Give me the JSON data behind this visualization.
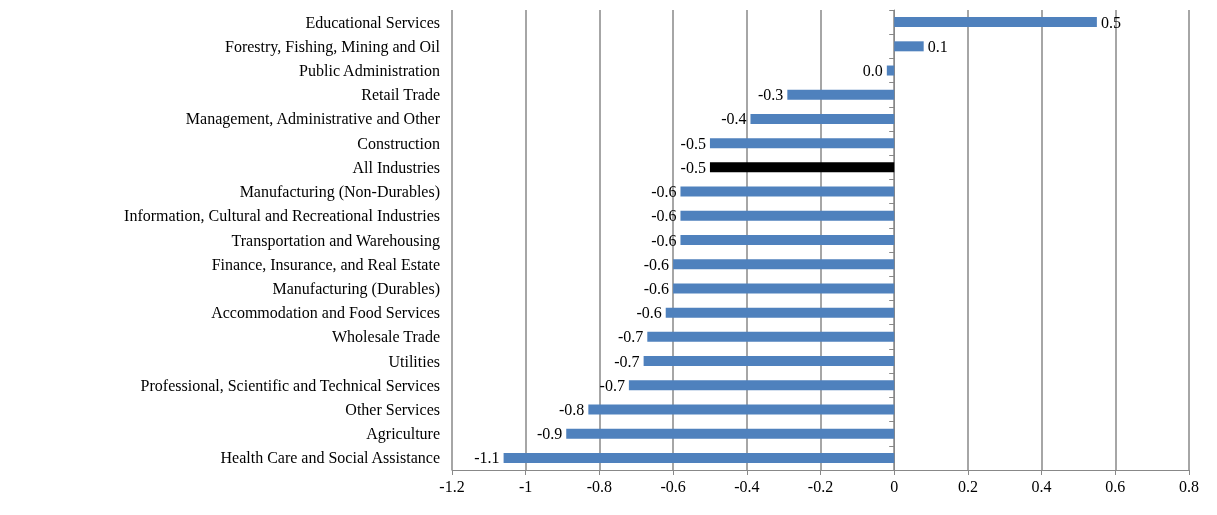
{
  "chart_data": {
    "type": "bar",
    "orientation": "horizontal",
    "categories": [
      "Educational Services",
      "Forestry, Fishing, Mining and Oil",
      "Public Administration",
      "Retail Trade",
      "Management, Administrative and Other",
      "Construction",
      "All Industries",
      "Manufacturing (Non-Durables)",
      "Information, Cultural and Recreational Industries",
      "Transportation and Warehousing",
      "Finance, Insurance, and Real Estate",
      "Manufacturing (Durables)",
      "Accommodation and Food Services",
      "Wholesale Trade",
      "Utilities",
      "Professional, Scientific and Technical Services",
      "Other Services",
      "Agriculture",
      "Health Care and Social Assistance"
    ],
    "values": [
      0.55,
      0.08,
      -0.02,
      -0.29,
      -0.39,
      -0.5,
      -0.5,
      -0.58,
      -0.58,
      -0.58,
      -0.6,
      -0.6,
      -0.62,
      -0.67,
      -0.68,
      -0.72,
      -0.83,
      -0.89,
      -1.06
    ],
    "value_labels": [
      "0.5",
      "0.1",
      "0.0",
      "-0.3",
      "-0.4",
      "-0.5",
      "-0.5",
      "-0.6",
      "-0.6",
      "-0.6",
      "-0.6",
      "-0.6",
      "-0.6",
      "-0.7",
      "-0.7",
      "-0.7",
      "-0.8",
      "-0.9",
      "-1.1"
    ],
    "colors": [
      "#4f81bd",
      "#4f81bd",
      "#4f81bd",
      "#4f81bd",
      "#4f81bd",
      "#4f81bd",
      "#000000",
      "#4f81bd",
      "#4f81bd",
      "#4f81bd",
      "#4f81bd",
      "#4f81bd",
      "#4f81bd",
      "#4f81bd",
      "#4f81bd",
      "#4f81bd",
      "#4f81bd",
      "#4f81bd",
      "#4f81bd"
    ],
    "xlim": [
      -1.2,
      0.8
    ],
    "xticks": [
      -1.2,
      -1,
      -0.8,
      -0.6,
      -0.4,
      -0.2,
      0,
      0.2,
      0.4,
      0.6,
      0.8
    ],
    "grid": "x"
  }
}
